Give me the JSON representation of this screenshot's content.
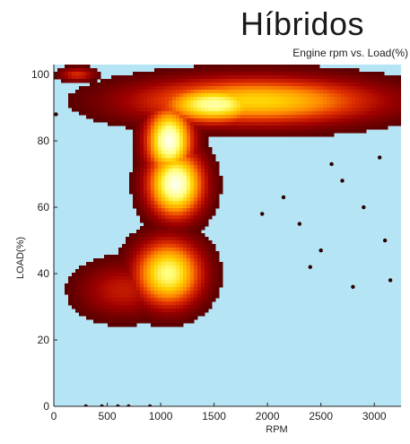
{
  "slide_title": "Híbridos",
  "chart_data": {
    "type": "heatmap",
    "title": "Engine rpm vs. Load(%)",
    "xlabel": "RPM",
    "ylabel": "LOAD(%)",
    "xlim": [
      0,
      3250
    ],
    "ylim": [
      0,
      103
    ],
    "xticks": [
      0,
      500,
      1000,
      1500,
      2000,
      2500,
      3000
    ],
    "yticks": [
      0,
      20,
      40,
      60,
      80,
      100
    ],
    "background_color": "#b5e4f4",
    "colormap": [
      "#5a0000",
      "#a00000",
      "#e03000",
      "#ff8c00",
      "#ffd200",
      "#ffff80",
      "#ffffe8"
    ],
    "clusters": [
      {
        "name": "idle-full-load",
        "x": 220,
        "y": 100,
        "sx": 120,
        "sy": 1.5,
        "peak": 0.35
      },
      {
        "name": "high-rpm-band",
        "x": 1900,
        "y": 92,
        "sx": 800,
        "sy": 5,
        "peak": 0.7
      },
      {
        "name": "high-rpm-band-core",
        "x": 1500,
        "y": 91,
        "sx": 350,
        "sy": 4,
        "peak": 0.9
      },
      {
        "name": "upper-knee",
        "x": 1080,
        "y": 80,
        "sx": 150,
        "sy": 7,
        "peak": 1.0
      },
      {
        "name": "mid-knee",
        "x": 1140,
        "y": 67,
        "sx": 180,
        "sy": 7,
        "peak": 1.0
      },
      {
        "name": "lower-blob",
        "x": 1070,
        "y": 40,
        "sx": 220,
        "sy": 7,
        "peak": 0.85
      },
      {
        "name": "low-spread",
        "x": 650,
        "y": 35,
        "sx": 300,
        "sy": 6,
        "peak": 0.3
      }
    ],
    "scatter_points": [
      {
        "x": 2300,
        "y": 55
      },
      {
        "x": 2500,
        "y": 47
      },
      {
        "x": 2700,
        "y": 68
      },
      {
        "x": 2900,
        "y": 60
      },
      {
        "x": 3100,
        "y": 50
      },
      {
        "x": 2800,
        "y": 36
      },
      {
        "x": 3150,
        "y": 38
      },
      {
        "x": 2150,
        "y": 63
      },
      {
        "x": 2600,
        "y": 73
      },
      {
        "x": 3050,
        "y": 75
      },
      {
        "x": 2400,
        "y": 42
      },
      {
        "x": 1950,
        "y": 58
      },
      {
        "x": 300,
        "y": 0
      },
      {
        "x": 450,
        "y": 0
      },
      {
        "x": 600,
        "y": 0
      },
      {
        "x": 700,
        "y": 0
      },
      {
        "x": 900,
        "y": 0
      },
      {
        "x": 20,
        "y": 88
      }
    ]
  }
}
